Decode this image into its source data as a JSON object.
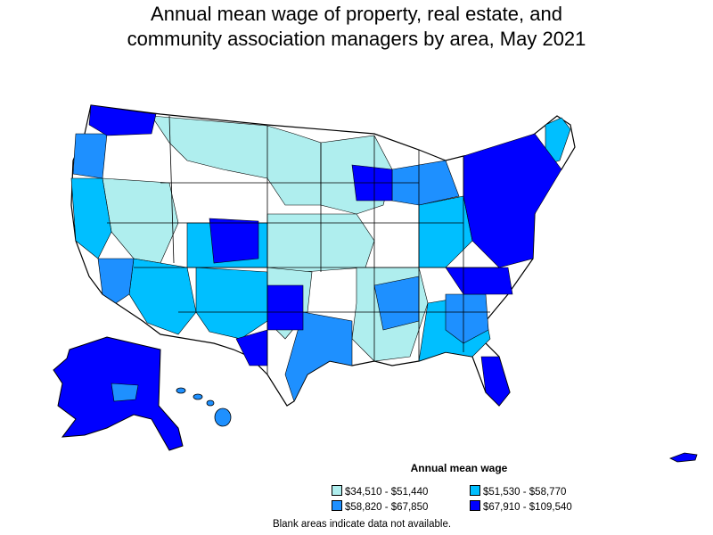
{
  "title": {
    "line1": "Annual mean wage of property, real estate, and",
    "line2": "community association managers by area, May 2021"
  },
  "legend": {
    "title": "Annual mean wage",
    "items": [
      {
        "label": "$34,510 - $51,440",
        "color": "#afeeee"
      },
      {
        "label": "$51,530 - $58,770",
        "color": "#00bfff"
      },
      {
        "label": "$58,820 - $67,850",
        "color": "#1e90ff"
      },
      {
        "label": "$67,910 - $109,540",
        "color": "#0000ff"
      }
    ]
  },
  "note": "Blank areas indicate data not available."
}
